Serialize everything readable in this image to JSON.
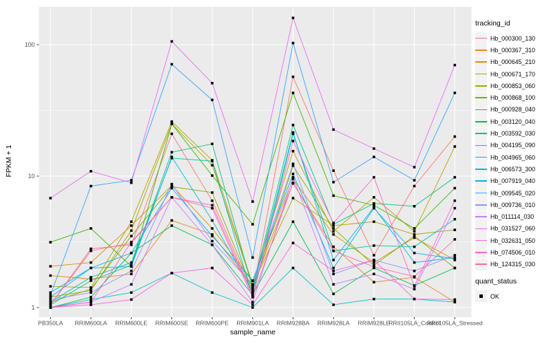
{
  "figure": {
    "background": "#FFFFFF",
    "panel_background": "#EBEBEB",
    "gridline_color": "#FFFFFF",
    "axis_text_color": "#4D4D4D",
    "tick_color": "#333333",
    "point_color": "#000000"
  },
  "chart_data": {
    "type": "line",
    "title": "",
    "xlabel": "sample_name",
    "ylabel": "FPKM + 1",
    "y_scale": "log10",
    "y_tick_labels": [
      "1",
      "10",
      "100"
    ],
    "y_tick_values": [
      1,
      10,
      100
    ],
    "y_minor_values": [
      3.1623,
      31.623
    ],
    "ylim": [
      0.83,
      194
    ],
    "grid": true,
    "legend_position": "right",
    "point_shape": "square",
    "categories": [
      "PB350LA",
      "RRIM600LA",
      "RRIM600LE",
      "RRIM600SE",
      "RRIM600PE",
      "RRIM901LA",
      "RRIM928BA",
      "RRIM928LA",
      "RRIM928LE",
      "RRII105LA_Control",
      "RRII105LA_Stressed"
    ],
    "series": [
      {
        "name": "Hb_000300_130",
        "color": "#F8766D",
        "values": [
          1.05,
          2.8,
          3.0,
          21,
          6.5,
          1.3,
          57,
          11,
          2.5,
          8.4,
          20
        ]
      },
      {
        "name": "Hb_000367_310",
        "color": "#E88526",
        "values": [
          1.75,
          1.65,
          1.8,
          4.6,
          3.6,
          1.45,
          8.8,
          2.9,
          1.56,
          1.7,
          1.1
        ]
      },
      {
        "name": "Hb_000645_210",
        "color": "#D89000",
        "values": [
          2.06,
          2.2,
          4.2,
          8.5,
          4.0,
          1.6,
          9.5,
          3.6,
          2.2,
          3.4,
          2.3
        ]
      },
      {
        "name": "Hb_000671_170",
        "color": "#C09B00",
        "values": [
          1.45,
          1.42,
          4.5,
          26,
          13.2,
          1.5,
          15.5,
          3.8,
          6.9,
          3.8,
          16.8
        ]
      },
      {
        "name": "Hb_000853_060",
        "color": "#A3A500",
        "values": [
          1.2,
          1.35,
          3.85,
          25,
          12.1,
          1.48,
          6.8,
          4.2,
          4.5,
          3.6,
          3.9
        ]
      },
      {
        "name": "Hb_000868_100",
        "color": "#7CAE00",
        "values": [
          1.1,
          1.38,
          3.5,
          8.3,
          7.5,
          1.35,
          12.0,
          4.0,
          2.1,
          3.5,
          2.0
        ]
      },
      {
        "name": "Hb_000928_040",
        "color": "#39B600",
        "values": [
          3.14,
          4.0,
          2.06,
          25,
          10.1,
          4.3,
          43,
          7.1,
          6.0,
          4.0,
          8.1
        ]
      },
      {
        "name": "Hb_003120_040",
        "color": "#00BB4E",
        "values": [
          1.0,
          1.2,
          2.6,
          4.2,
          3.0,
          1.25,
          4.5,
          1.27,
          2.0,
          1.47,
          2.0
        ]
      },
      {
        "name": "Hb_003592_030",
        "color": "#00C087",
        "values": [
          1.05,
          1.6,
          2.1,
          15.2,
          17.6,
          1.4,
          24.5,
          4.3,
          6.2,
          5.9,
          9.8
        ]
      },
      {
        "name": "Hb_004195_090",
        "color": "#00C1AB",
        "values": [
          1.1,
          1.7,
          2.2,
          13.7,
          13.0,
          1.2,
          21,
          2.7,
          2.96,
          2.9,
          4.7
        ]
      },
      {
        "name": "Hb_004965_060",
        "color": "#00BFC4",
        "values": [
          1.0,
          1.15,
          1.3,
          1.83,
          1.3,
          1.0,
          2.0,
          1.05,
          1.16,
          1.16,
          1.1
        ]
      },
      {
        "name": "Hb_006573_300",
        "color": "#00BAE0",
        "values": [
          1.2,
          2.0,
          2.05,
          14.0,
          4.6,
          1.33,
          21.5,
          2.3,
          5.8,
          2.2,
          2.4
        ]
      },
      {
        "name": "Hb_007919_040",
        "color": "#00B0F6",
        "values": [
          1.3,
          2.0,
          2.6,
          8.1,
          3.5,
          1.6,
          10.4,
          2.0,
          5.7,
          2.6,
          2.35
        ]
      },
      {
        "name": "Hb_009545_020",
        "color": "#35A2FF",
        "values": [
          1.25,
          8.4,
          9.3,
          71,
          38,
          2.4,
          103,
          9.0,
          14.0,
          9.3,
          43
        ]
      },
      {
        "name": "Hb_009736_010",
        "color": "#9590FF",
        "values": [
          1.15,
          1.3,
          1.9,
          8.7,
          3.2,
          1.5,
          12.4,
          1.8,
          2.3,
          1.9,
          2.5
        ]
      },
      {
        "name": "Hb_011114_030",
        "color": "#C77CFF",
        "values": [
          1.0,
          1.1,
          1.5,
          6.9,
          3.0,
          1.1,
          9.8,
          1.5,
          1.8,
          1.38,
          5.7
        ]
      },
      {
        "name": "Hb_031527_060",
        "color": "#E76BF3",
        "values": [
          6.8,
          10.9,
          8.9,
          106,
          51,
          6.4,
          160,
          22.6,
          16.2,
          11.7,
          70
        ]
      },
      {
        "name": "Hb_032631_050",
        "color": "#FA62DB",
        "values": [
          1.0,
          1.05,
          1.15,
          1.83,
          2.0,
          1.05,
          3.1,
          1.9,
          2.3,
          1.16,
          1.15
        ]
      },
      {
        "name": "Hb_074506_010",
        "color": "#FF61CC",
        "values": [
          1.0,
          1.1,
          3.15,
          6.9,
          6.0,
          1.25,
          18.5,
          4.4,
          9.8,
          1.45,
          6.5
        ]
      },
      {
        "name": "Hb_124315_030",
        "color": "#FF67A4",
        "values": [
          1.05,
          2.7,
          3.1,
          6.9,
          5.7,
          1.2,
          8.9,
          2.7,
          2.04,
          1.72,
          3.3
        ]
      }
    ],
    "legend": {
      "color_legend_title": "tracking_id",
      "shape_legend_title": "quant_status",
      "shape_items": [
        {
          "label": "OK",
          "shape": "square",
          "color": "#000000"
        }
      ]
    }
  }
}
